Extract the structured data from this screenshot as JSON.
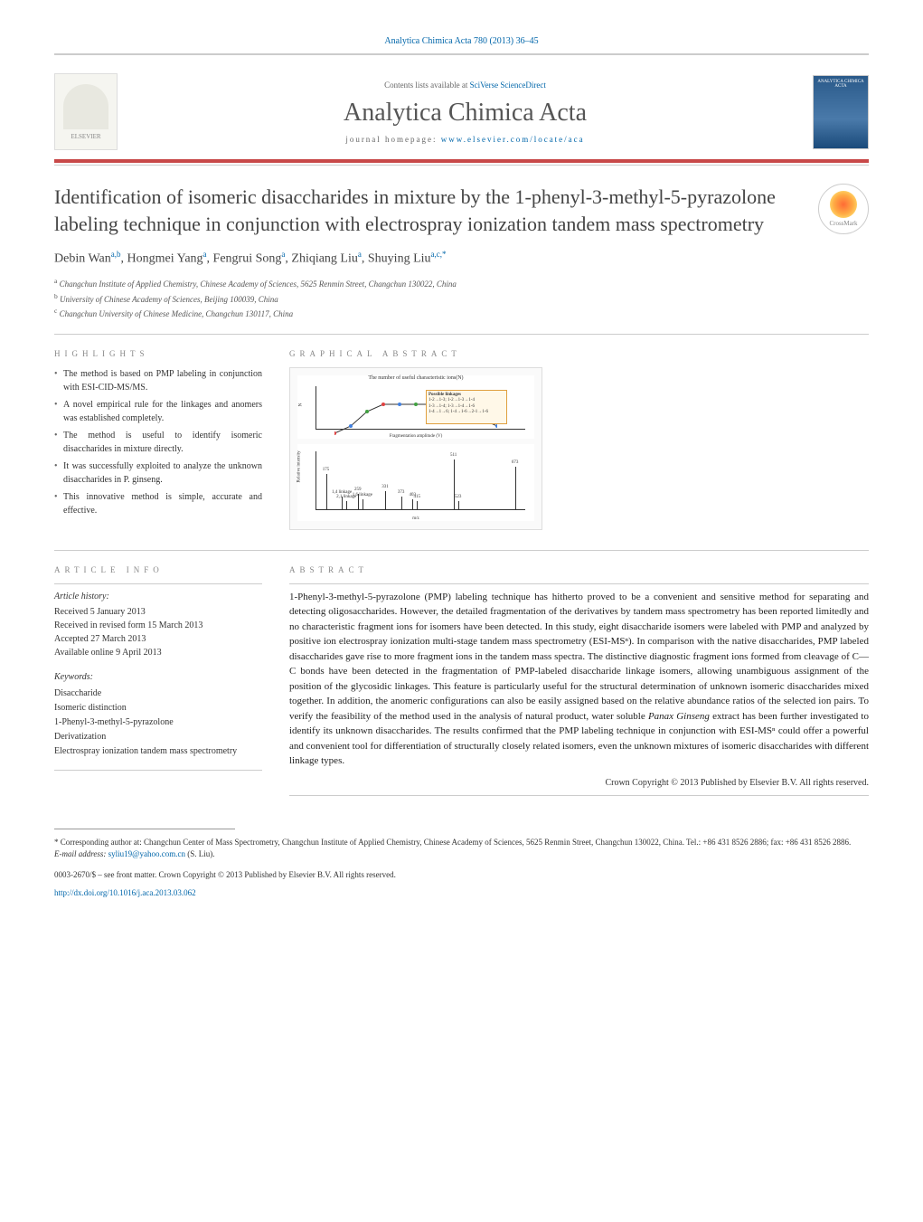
{
  "header": {
    "citation": "Analytica Chimica Acta 780 (2013) 36–45",
    "contents_prefix": "Contents lists available at ",
    "contents_link": "SciVerse ScienceDirect",
    "journal_title": "Analytica Chimica Acta",
    "homepage_prefix": "journal homepage: ",
    "homepage_url": "www.elsevier.com/locate/aca",
    "elsevier_label": "ELSEVIER",
    "cover_label": "ANALYTICA CHIMICA ACTA",
    "crossmark_label": "CrossMark"
  },
  "article": {
    "title": "Identification of isomeric disaccharides in mixture by the 1-phenyl-3-methyl-5-pyrazolone labeling technique in conjunction with electrospray ionization tandem mass spectrometry",
    "authors_html": "Debin Wan",
    "author_list": [
      {
        "name": "Debin Wan",
        "aff": "a,b"
      },
      {
        "name": "Hongmei Yang",
        "aff": "a"
      },
      {
        "name": "Fengrui Song",
        "aff": "a"
      },
      {
        "name": "Zhiqiang Liu",
        "aff": "a"
      },
      {
        "name": "Shuying Liu",
        "aff": "a,c,*"
      }
    ],
    "affiliations": [
      {
        "key": "a",
        "text": "Changchun Institute of Applied Chemistry, Chinese Academy of Sciences, 5625 Renmin Street, Changchun 130022, China"
      },
      {
        "key": "b",
        "text": "University of Chinese Academy of Sciences, Beijing 100039, China"
      },
      {
        "key": "c",
        "text": "Changchun University of Chinese Medicine, Changchun 130117, China"
      }
    ]
  },
  "sections": {
    "highlights_heading": "highlights",
    "graphical_heading": "graphical abstract",
    "article_info_heading": "article info",
    "abstract_heading": "abstract"
  },
  "highlights": [
    "The method is based on PMP labeling in conjunction with ESI-CID-MS/MS.",
    "A novel empirical rule for the linkages and anomers was established completely.",
    "The method is useful to identify isomeric disaccharides in mixture directly.",
    "It was successfully exploited to analyze the unknown disaccharides in P. ginseng.",
    "This innovative method is simple, accurate and effective."
  ],
  "graphical_abstract": {
    "chart": {
      "title": "The number of useful characteristic ions(N)",
      "ylabel": "N",
      "xlabel": "Fragmentation amplitude (V)",
      "xlim": [
        0.2,
        1.2
      ],
      "ylim": [
        0,
        7
      ],
      "legend_title": "Possible linkages",
      "legend_lines": [
        "1-2→1-3; 1-2→1-3→1-4",
        "1-3→1-4; 1-3→1-4→1-6",
        "1-4→1→6; 1-4→1-6→2-1→1-6"
      ],
      "legend_bg": "#fff8e8",
      "legend_border": "#e0a040",
      "curve_points": [
        [
          0.2,
          2
        ],
        [
          0.3,
          3
        ],
        [
          0.4,
          5
        ],
        [
          0.5,
          6
        ],
        [
          0.6,
          6
        ],
        [
          0.7,
          6
        ],
        [
          0.8,
          6
        ],
        [
          0.9,
          5
        ],
        [
          1.0,
          5
        ],
        [
          1.1,
          4
        ],
        [
          1.2,
          3
        ]
      ],
      "curve_color": "#000000",
      "point_colors": [
        "#e04040",
        "#4080e0",
        "#40a040"
      ]
    },
    "spectrum": {
      "ylabel": "Relative intensity",
      "xlabel": "m/z",
      "xlim": [
        150,
        700
      ],
      "peaks": [
        {
          "mz": 175,
          "intensity": 70,
          "label": "175"
        },
        {
          "mz": 217,
          "intensity": 25,
          "label": "1,4 linkage"
        },
        {
          "mz": 229,
          "intensity": 15,
          "label": "2,1 linkage"
        },
        {
          "mz": 259,
          "intensity": 30,
          "label": "259"
        },
        {
          "mz": 271,
          "intensity": 20,
          "label": "1,6 linkage"
        },
        {
          "mz": 331,
          "intensity": 35,
          "label": "331"
        },
        {
          "mz": 373,
          "intensity": 25,
          "label": "373"
        },
        {
          "mz": 403,
          "intensity": 20,
          "label": "403"
        },
        {
          "mz": 415,
          "intensity": 15,
          "label": "415"
        },
        {
          "mz": 511,
          "intensity": 100,
          "label": "511"
        },
        {
          "mz": 523,
          "intensity": 15,
          "label": "523"
        },
        {
          "mz": 673,
          "intensity": 85,
          "label": "673"
        }
      ],
      "annotations": [
        {
          "mz": 217,
          "text": "1,4 linkage"
        },
        {
          "mz": 229,
          "text": "2,1 linkage"
        },
        {
          "mz": 271,
          "text": "1,6 linkage"
        },
        {
          "mz": 511,
          "text": "α/β Anomer"
        },
        {
          "mz": 673,
          "text": "[M + H]+"
        }
      ]
    }
  },
  "article_info": {
    "history_heading": "Article history:",
    "received": "Received 5 January 2013",
    "revised": "Received in revised form 15 March 2013",
    "accepted": "Accepted 27 March 2013",
    "online": "Available online 9 April 2013",
    "keywords_heading": "Keywords:",
    "keywords": [
      "Disaccharide",
      "Isomeric distinction",
      "1-Phenyl-3-methyl-5-pyrazolone",
      "Derivatization",
      "Electrospray ionization tandem mass spectrometry"
    ]
  },
  "abstract": {
    "text": "1-Phenyl-3-methyl-5-pyrazolone (PMP) labeling technique has hitherto proved to be a convenient and sensitive method for separating and detecting oligosaccharides. However, the detailed fragmentation of the derivatives by tandem mass spectrometry has been reported limitedly and no characteristic fragment ions for isomers have been detected. In this study, eight disaccharide isomers were labeled with PMP and analyzed by positive ion electrospray ionization multi-stage tandem mass spectrometry (ESI-MSⁿ). In comparison with the native disaccharides, PMP labeled disaccharides gave rise to more fragment ions in the tandem mass spectra. The distinctive diagnostic fragment ions formed from cleavage of C—C bonds have been detected in the fragmentation of PMP-labeled disaccharide linkage isomers, allowing unambiguous assignment of the position of the glycosidic linkages. This feature is particularly useful for the structural determination of unknown isomeric disaccharides mixed together. In addition, the anomeric configurations can also be easily assigned based on the relative abundance ratios of the selected ion pairs. To verify the feasibility of the method used in the analysis of natural product, water soluble Panax Ginseng extract has been further investigated to identify its unknown disaccharides. The results confirmed that the PMP labeling technique in conjunction with ESI-MSⁿ could offer a powerful and convenient tool for differentiation of structurally closely related isomers, even the unknown mixtures of isomeric disaccharides with different linkage types.",
    "copyright": "Crown Copyright © 2013 Published by Elsevier B.V. All rights reserved."
  },
  "footer": {
    "corresponding": "* Corresponding author at: Changchun Center of Mass Spectrometry, Changchun Institute of Applied Chemistry, Chinese Academy of Sciences, 5625 Renmin Street, Changchun 130022, China. Tel.: +86 431 8526 2886; fax: +86 431 8526 2886.",
    "email_label": "E-mail address: ",
    "email": "syliu19@yahoo.com.cn",
    "email_suffix": " (S. Liu).",
    "issn_line": "0003-2670/$ – see front matter. Crown Copyright © 2013 Published by Elsevier B.V. All rights reserved.",
    "doi": "http://dx.doi.org/10.1016/j.aca.2013.03.062"
  },
  "colors": {
    "link": "#0066aa",
    "red_rule": "#c84848",
    "text": "#222222",
    "heading": "#888888"
  }
}
